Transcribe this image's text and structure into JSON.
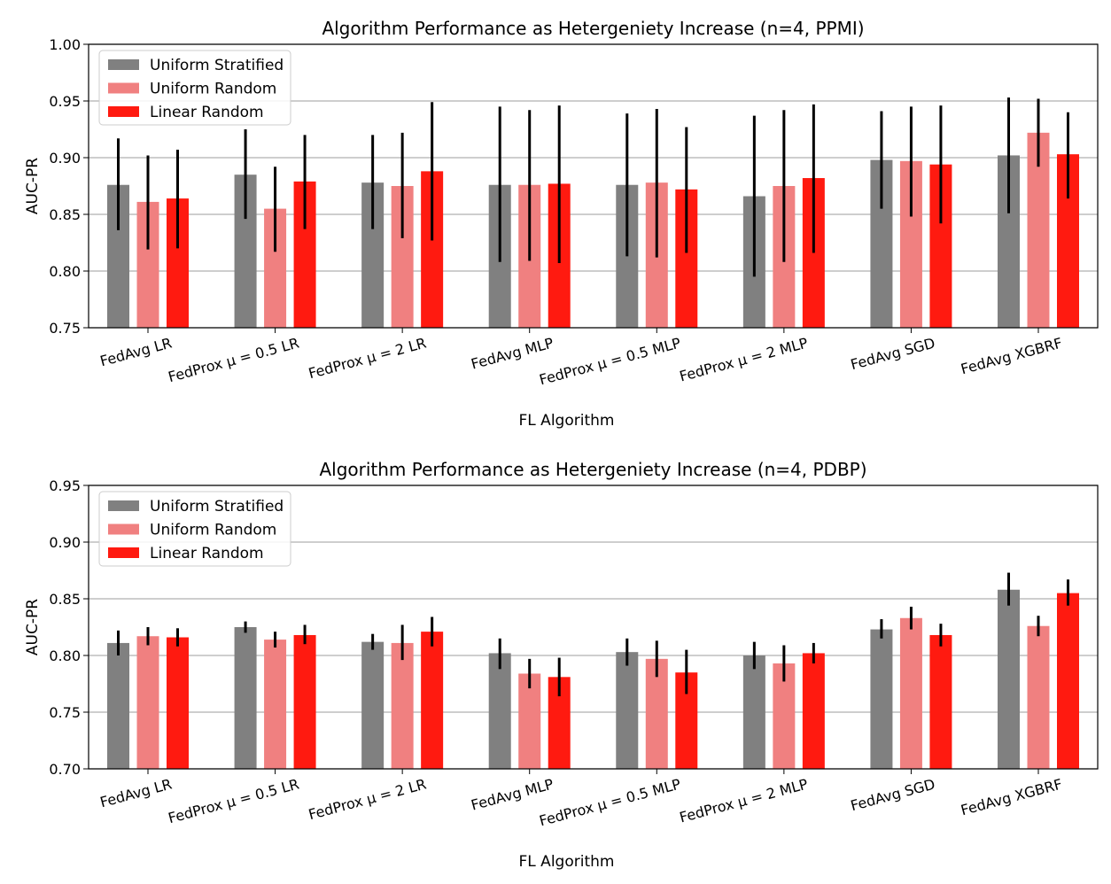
{
  "chart_data": [
    {
      "type": "bar",
      "title": "Algorithm Performance as Hetergeniety Increase (n=4, PPMI)",
      "xlabel": "FL Algorithm",
      "ylabel": "AUC-PR",
      "ylim": [
        0.75,
        1.0
      ],
      "yticks": [
        "0.75",
        "0.80",
        "0.85",
        "0.90",
        "0.95",
        "1.00"
      ],
      "grid": "horizontal",
      "legend_position": "upper-left",
      "categories": [
        "FedAvg LR",
        "FedProx μ = 0.5 LR",
        "FedProx μ = 2 LR",
        "FedAvg MLP",
        "FedProx μ = 0.5 MLP",
        "FedProx μ = 2 MLP",
        "FedAvg SGD",
        "FedAvg XGBRF"
      ],
      "series": [
        {
          "name": "Uniform Stratified",
          "color": "#808080",
          "values": [
            0.876,
            0.885,
            0.878,
            0.876,
            0.876,
            0.866,
            0.898,
            0.902
          ],
          "err_low": [
            0.836,
            0.846,
            0.837,
            0.808,
            0.813,
            0.795,
            0.855,
            0.851
          ],
          "err_high": [
            0.917,
            0.925,
            0.92,
            0.945,
            0.939,
            0.937,
            0.941,
            0.953
          ]
        },
        {
          "name": "Uniform Random",
          "color": "#f08080",
          "values": [
            0.861,
            0.855,
            0.875,
            0.876,
            0.878,
            0.875,
            0.897,
            0.922
          ],
          "err_low": [
            0.819,
            0.817,
            0.829,
            0.809,
            0.812,
            0.808,
            0.848,
            0.892
          ],
          "err_high": [
            0.902,
            0.892,
            0.922,
            0.942,
            0.943,
            0.942,
            0.945,
            0.952
          ]
        },
        {
          "name": "Linear Random",
          "color": "#ff1a10",
          "values": [
            0.864,
            0.879,
            0.888,
            0.877,
            0.872,
            0.882,
            0.894,
            0.903
          ],
          "err_low": [
            0.82,
            0.837,
            0.827,
            0.807,
            0.816,
            0.816,
            0.842,
            0.864
          ],
          "err_high": [
            0.907,
            0.92,
            0.949,
            0.946,
            0.927,
            0.947,
            0.946,
            0.94
          ]
        }
      ]
    },
    {
      "type": "bar",
      "title": "Algorithm Performance as Hetergeniety Increase (n=4, PDBP)",
      "xlabel": "FL Algorithm",
      "ylabel": "AUC-PR",
      "ylim": [
        0.7,
        0.95
      ],
      "yticks": [
        "0.70",
        "0.75",
        "0.80",
        "0.85",
        "0.90",
        "0.95"
      ],
      "grid": "horizontal",
      "legend_position": "upper-left",
      "categories": [
        "FedAvg LR",
        "FedProx μ = 0.5 LR",
        "FedProx μ = 2 LR",
        "FedAvg MLP",
        "FedProx μ = 0.5 MLP",
        "FedProx μ = 2 MLP",
        "FedAvg SGD",
        "FedAvg XGBRF"
      ],
      "series": [
        {
          "name": "Uniform Stratified",
          "color": "#808080",
          "values": [
            0.811,
            0.825,
            0.812,
            0.802,
            0.803,
            0.8,
            0.823,
            0.858
          ],
          "err_low": [
            0.8,
            0.82,
            0.805,
            0.788,
            0.791,
            0.788,
            0.815,
            0.844
          ],
          "err_high": [
            0.822,
            0.83,
            0.819,
            0.815,
            0.815,
            0.812,
            0.832,
            0.873
          ]
        },
        {
          "name": "Uniform Random",
          "color": "#f08080",
          "values": [
            0.817,
            0.814,
            0.811,
            0.784,
            0.797,
            0.793,
            0.833,
            0.826
          ],
          "err_low": [
            0.809,
            0.807,
            0.796,
            0.771,
            0.781,
            0.777,
            0.823,
            0.817
          ],
          "err_high": [
            0.825,
            0.821,
            0.827,
            0.797,
            0.813,
            0.809,
            0.843,
            0.835
          ]
        },
        {
          "name": "Linear Random",
          "color": "#ff1a10",
          "values": [
            0.816,
            0.818,
            0.821,
            0.781,
            0.785,
            0.802,
            0.818,
            0.855
          ],
          "err_low": [
            0.808,
            0.81,
            0.808,
            0.764,
            0.766,
            0.793,
            0.808,
            0.844
          ],
          "err_high": [
            0.824,
            0.827,
            0.834,
            0.798,
            0.805,
            0.811,
            0.828,
            0.867
          ]
        }
      ]
    }
  ]
}
